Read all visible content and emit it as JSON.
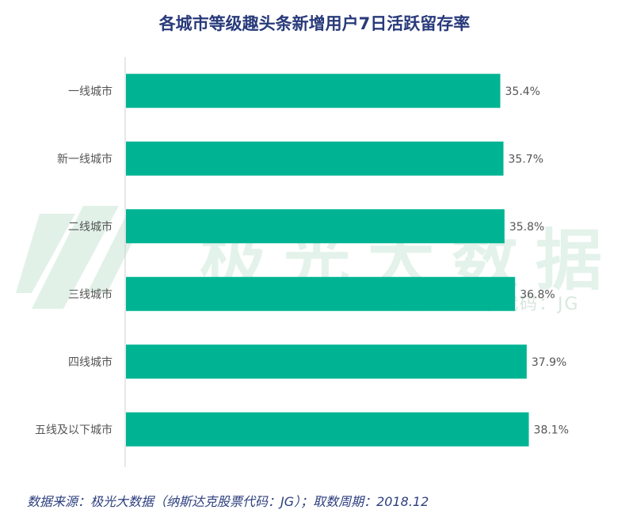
{
  "chart_data": {
    "type": "bar",
    "orientation": "horizontal",
    "title": "各城市等级趣头条新增用户7日活跃留存率",
    "categories": [
      "一线城市",
      "新一线城市",
      "二线城市",
      "三线城市",
      "四线城市",
      "五线及以下城市"
    ],
    "values": [
      35.4,
      35.7,
      35.8,
      36.8,
      37.9,
      38.1
    ],
    "value_labels": [
      "35.4%",
      "35.7%",
      "35.8%",
      "36.8%",
      "37.9%",
      "38.1%"
    ],
    "xlim": [
      0,
      46
    ],
    "grid": false,
    "legend": "none",
    "bar_color": "#00b493"
  },
  "watermark": {
    "text": "极光大数据",
    "subtext": "纳斯达克股票代码：JG"
  },
  "source": "数据来源：极光大数据（纳斯达克股票代码：JG）；取数周期：2018.12",
  "colors": {
    "title": "#283a7a",
    "source": "#2d3f7e",
    "bar": "#00b493",
    "label": "#555555",
    "axis": "#d0d0d0"
  }
}
